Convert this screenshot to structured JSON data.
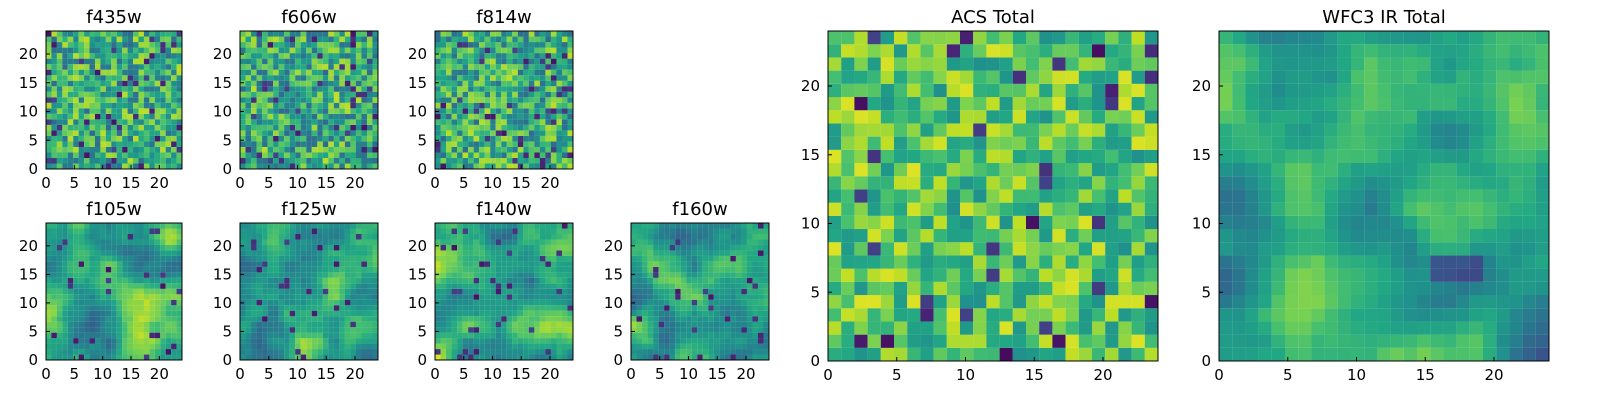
{
  "chart_data": [
    {
      "type": "heatmap",
      "title": "f435w",
      "xlabel": "",
      "ylabel": "",
      "grid_size": [
        25,
        25
      ],
      "xlim": [
        0,
        24
      ],
      "ylim": [
        0,
        24
      ],
      "xticks": [
        0,
        5,
        10,
        15,
        20
      ],
      "yticks": [
        0,
        5,
        10,
        15,
        20
      ],
      "colormap": "viridis",
      "pattern": "noise",
      "seed": 11
    },
    {
      "type": "heatmap",
      "title": "f606w",
      "xlabel": "",
      "ylabel": "",
      "grid_size": [
        25,
        25
      ],
      "xlim": [
        0,
        24
      ],
      "ylim": [
        0,
        24
      ],
      "xticks": [
        0,
        5,
        10,
        15,
        20
      ],
      "yticks": [
        0,
        5,
        10,
        15,
        20
      ],
      "colormap": "viridis",
      "pattern": "noise",
      "seed": 23
    },
    {
      "type": "heatmap",
      "title": "f814w",
      "xlabel": "",
      "ylabel": "",
      "grid_size": [
        25,
        25
      ],
      "xlim": [
        0,
        24
      ],
      "ylim": [
        0,
        24
      ],
      "xticks": [
        0,
        5,
        10,
        15,
        20
      ],
      "yticks": [
        0,
        5,
        10,
        15,
        20
      ],
      "colormap": "viridis",
      "pattern": "noise",
      "seed": 37
    },
    {
      "type": "heatmap",
      "title": "f105w",
      "xlabel": "",
      "ylabel": "",
      "grid_size": [
        25,
        25
      ],
      "xlim": [
        0,
        24
      ],
      "ylim": [
        0,
        24
      ],
      "xticks": [
        0,
        5,
        10,
        15,
        20
      ],
      "yticks": [
        0,
        5,
        10,
        15,
        20
      ],
      "colormap": "viridis",
      "pattern": "smooth",
      "seed": 41
    },
    {
      "type": "heatmap",
      "title": "f125w",
      "xlabel": "",
      "ylabel": "",
      "grid_size": [
        25,
        25
      ],
      "xlim": [
        0,
        24
      ],
      "ylim": [
        0,
        24
      ],
      "xticks": [
        0,
        5,
        10,
        15,
        20
      ],
      "yticks": [
        0,
        5,
        10,
        15,
        20
      ],
      "colormap": "viridis",
      "pattern": "smooth",
      "seed": 53
    },
    {
      "type": "heatmap",
      "title": "f140w",
      "xlabel": "",
      "ylabel": "",
      "grid_size": [
        25,
        25
      ],
      "xlim": [
        0,
        24
      ],
      "ylim": [
        0,
        24
      ],
      "xticks": [
        0,
        5,
        10,
        15,
        20
      ],
      "yticks": [
        0,
        5,
        10,
        15,
        20
      ],
      "colormap": "viridis",
      "pattern": "smooth",
      "seed": 67
    },
    {
      "type": "heatmap",
      "title": "f160w",
      "xlabel": "",
      "ylabel": "",
      "grid_size": [
        25,
        25
      ],
      "xlim": [
        0,
        24
      ],
      "ylim": [
        0,
        24
      ],
      "xticks": [
        0,
        5,
        10,
        15,
        20
      ],
      "yticks": [
        0,
        5,
        10,
        15,
        20
      ],
      "colormap": "viridis",
      "pattern": "smooth",
      "seed": 79
    },
    {
      "type": "heatmap",
      "title": "ACS Total",
      "xlabel": "",
      "ylabel": "",
      "grid_size": [
        25,
        25
      ],
      "xlim": [
        0,
        24
      ],
      "ylim": [
        0,
        24
      ],
      "xticks": [
        0,
        5,
        10,
        15,
        20
      ],
      "yticks": [
        0,
        5,
        10,
        15,
        20
      ],
      "colormap": "viridis",
      "pattern": "bright-noise",
      "seed": 97
    },
    {
      "type": "heatmap",
      "title": "WFC3 IR Total",
      "xlabel": "",
      "ylabel": "",
      "grid_size": [
        25,
        25
      ],
      "xlim": [
        0,
        24
      ],
      "ylim": [
        0,
        24
      ],
      "xticks": [
        0,
        5,
        10,
        15,
        20
      ],
      "yticks": [
        0,
        5,
        10,
        15,
        20
      ],
      "colormap": "viridis",
      "pattern": "smooth-dark-corner",
      "seed": 109
    }
  ]
}
